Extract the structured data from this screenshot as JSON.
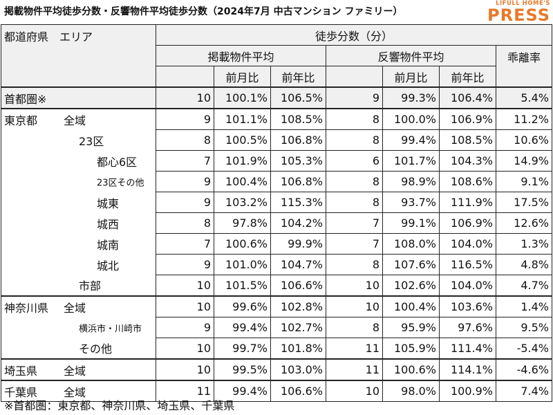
{
  "title": "掲載物件平均徒歩分数・反響物件平均徒歩分数（2024年7月 中古マンション ファミリー）",
  "logo": {
    "sub": "LIFULL HOME'S",
    "main": "PRESS"
  },
  "header": {
    "area": "都道府県　エリア",
    "walk": "徒歩分数（分）",
    "listed": "掲載物件平均",
    "response": "反響物件平均",
    "gap": "乖離率",
    "mom": "前月比",
    "yoy": "前年比"
  },
  "rows": [
    {
      "pref": "首都圏※",
      "area": "",
      "l": "10",
      "lm": "100.1%",
      "ly": "106.5%",
      "r": "9",
      "rm": "99.3%",
      "ry": "106.4%",
      "g": "5.4%"
    },
    {
      "pref": "東京都",
      "area": "全域",
      "l": "9",
      "lm": "101.1%",
      "ly": "108.5%",
      "r": "8",
      "rm": "100.0%",
      "ry": "106.9%",
      "g": "11.2%"
    },
    {
      "pref": "",
      "area": "23区",
      "l": "8",
      "lm": "100.5%",
      "ly": "106.8%",
      "r": "8",
      "rm": "99.4%",
      "ry": "108.5%",
      "g": "10.6%"
    },
    {
      "pref": "",
      "area": "都心6区",
      "l": "7",
      "lm": "101.9%",
      "ly": "105.3%",
      "r": "6",
      "rm": "101.7%",
      "ry": "104.3%",
      "g": "14.9%"
    },
    {
      "pref": "",
      "area": "23区その他",
      "l": "9",
      "lm": "100.4%",
      "ly": "106.8%",
      "r": "8",
      "rm": "98.9%",
      "ry": "108.6%",
      "g": "9.1%"
    },
    {
      "pref": "",
      "area": "城東",
      "l": "9",
      "lm": "103.2%",
      "ly": "115.3%",
      "r": "8",
      "rm": "93.7%",
      "ry": "111.9%",
      "g": "17.5%"
    },
    {
      "pref": "",
      "area": "城西",
      "l": "8",
      "lm": "97.8%",
      "ly": "104.2%",
      "r": "7",
      "rm": "99.1%",
      "ry": "106.9%",
      "g": "12.6%"
    },
    {
      "pref": "",
      "area": "城南",
      "l": "7",
      "lm": "100.6%",
      "ly": "99.9%",
      "r": "7",
      "rm": "108.0%",
      "ry": "104.0%",
      "g": "1.3%"
    },
    {
      "pref": "",
      "area": "城北",
      "l": "9",
      "lm": "101.0%",
      "ly": "104.7%",
      "r": "8",
      "rm": "107.6%",
      "ry": "116.5%",
      "g": "4.8%"
    },
    {
      "pref": "",
      "area": "市部",
      "l": "10",
      "lm": "101.5%",
      "ly": "106.6%",
      "r": "10",
      "rm": "102.6%",
      "ry": "104.0%",
      "g": "4.7%"
    },
    {
      "pref": "神奈川県",
      "area": "全域",
      "l": "10",
      "lm": "99.6%",
      "ly": "102.8%",
      "r": "10",
      "rm": "100.4%",
      "ry": "103.6%",
      "g": "1.4%"
    },
    {
      "pref": "",
      "area": "横浜市・川崎市",
      "l": "9",
      "lm": "99.4%",
      "ly": "102.7%",
      "r": "8",
      "rm": "95.9%",
      "ry": "97.6%",
      "g": "9.5%"
    },
    {
      "pref": "",
      "area": "その他",
      "l": "10",
      "lm": "99.7%",
      "ly": "101.8%",
      "r": "11",
      "rm": "105.9%",
      "ry": "111.4%",
      "g": "-5.4%"
    },
    {
      "pref": "埼玉県",
      "area": "全域",
      "l": "10",
      "lm": "99.5%",
      "ly": "103.0%",
      "r": "11",
      "rm": "100.6%",
      "ry": "114.1%",
      "g": "-4.6%"
    },
    {
      "pref": "千葉県",
      "area": "全域",
      "l": "11",
      "lm": "99.4%",
      "ly": "106.6%",
      "r": "10",
      "rm": "98.0%",
      "ry": "100.9%",
      "g": "7.4%"
    }
  ],
  "footnote": "※首都圏：東京都、神奈川県、埼玉県、千葉県"
}
